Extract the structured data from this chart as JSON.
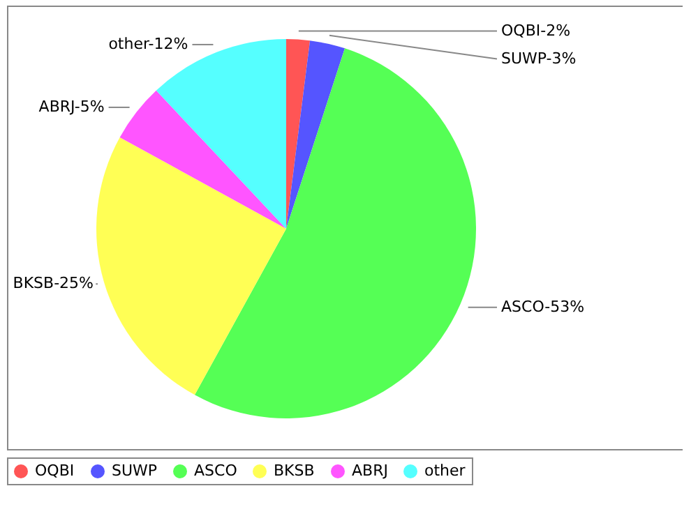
{
  "chart_data": {
    "type": "pie",
    "categories": [
      "OQBI",
      "SUWP",
      "ASCO",
      "BKSB",
      "ABRJ",
      "other"
    ],
    "values": [
      2,
      3,
      53,
      25,
      5,
      12
    ],
    "colors": [
      "#ff5555",
      "#5555ff",
      "#55ff55",
      "#ffff55",
      "#ff55ff",
      "#55ffff"
    ],
    "value_labels": [
      "OQBI-2%",
      "SUWP-3%",
      "ASCO-53%",
      "BKSB-25%",
      "ABRJ-5%",
      "other-12%"
    ],
    "legend": "bottom"
  }
}
